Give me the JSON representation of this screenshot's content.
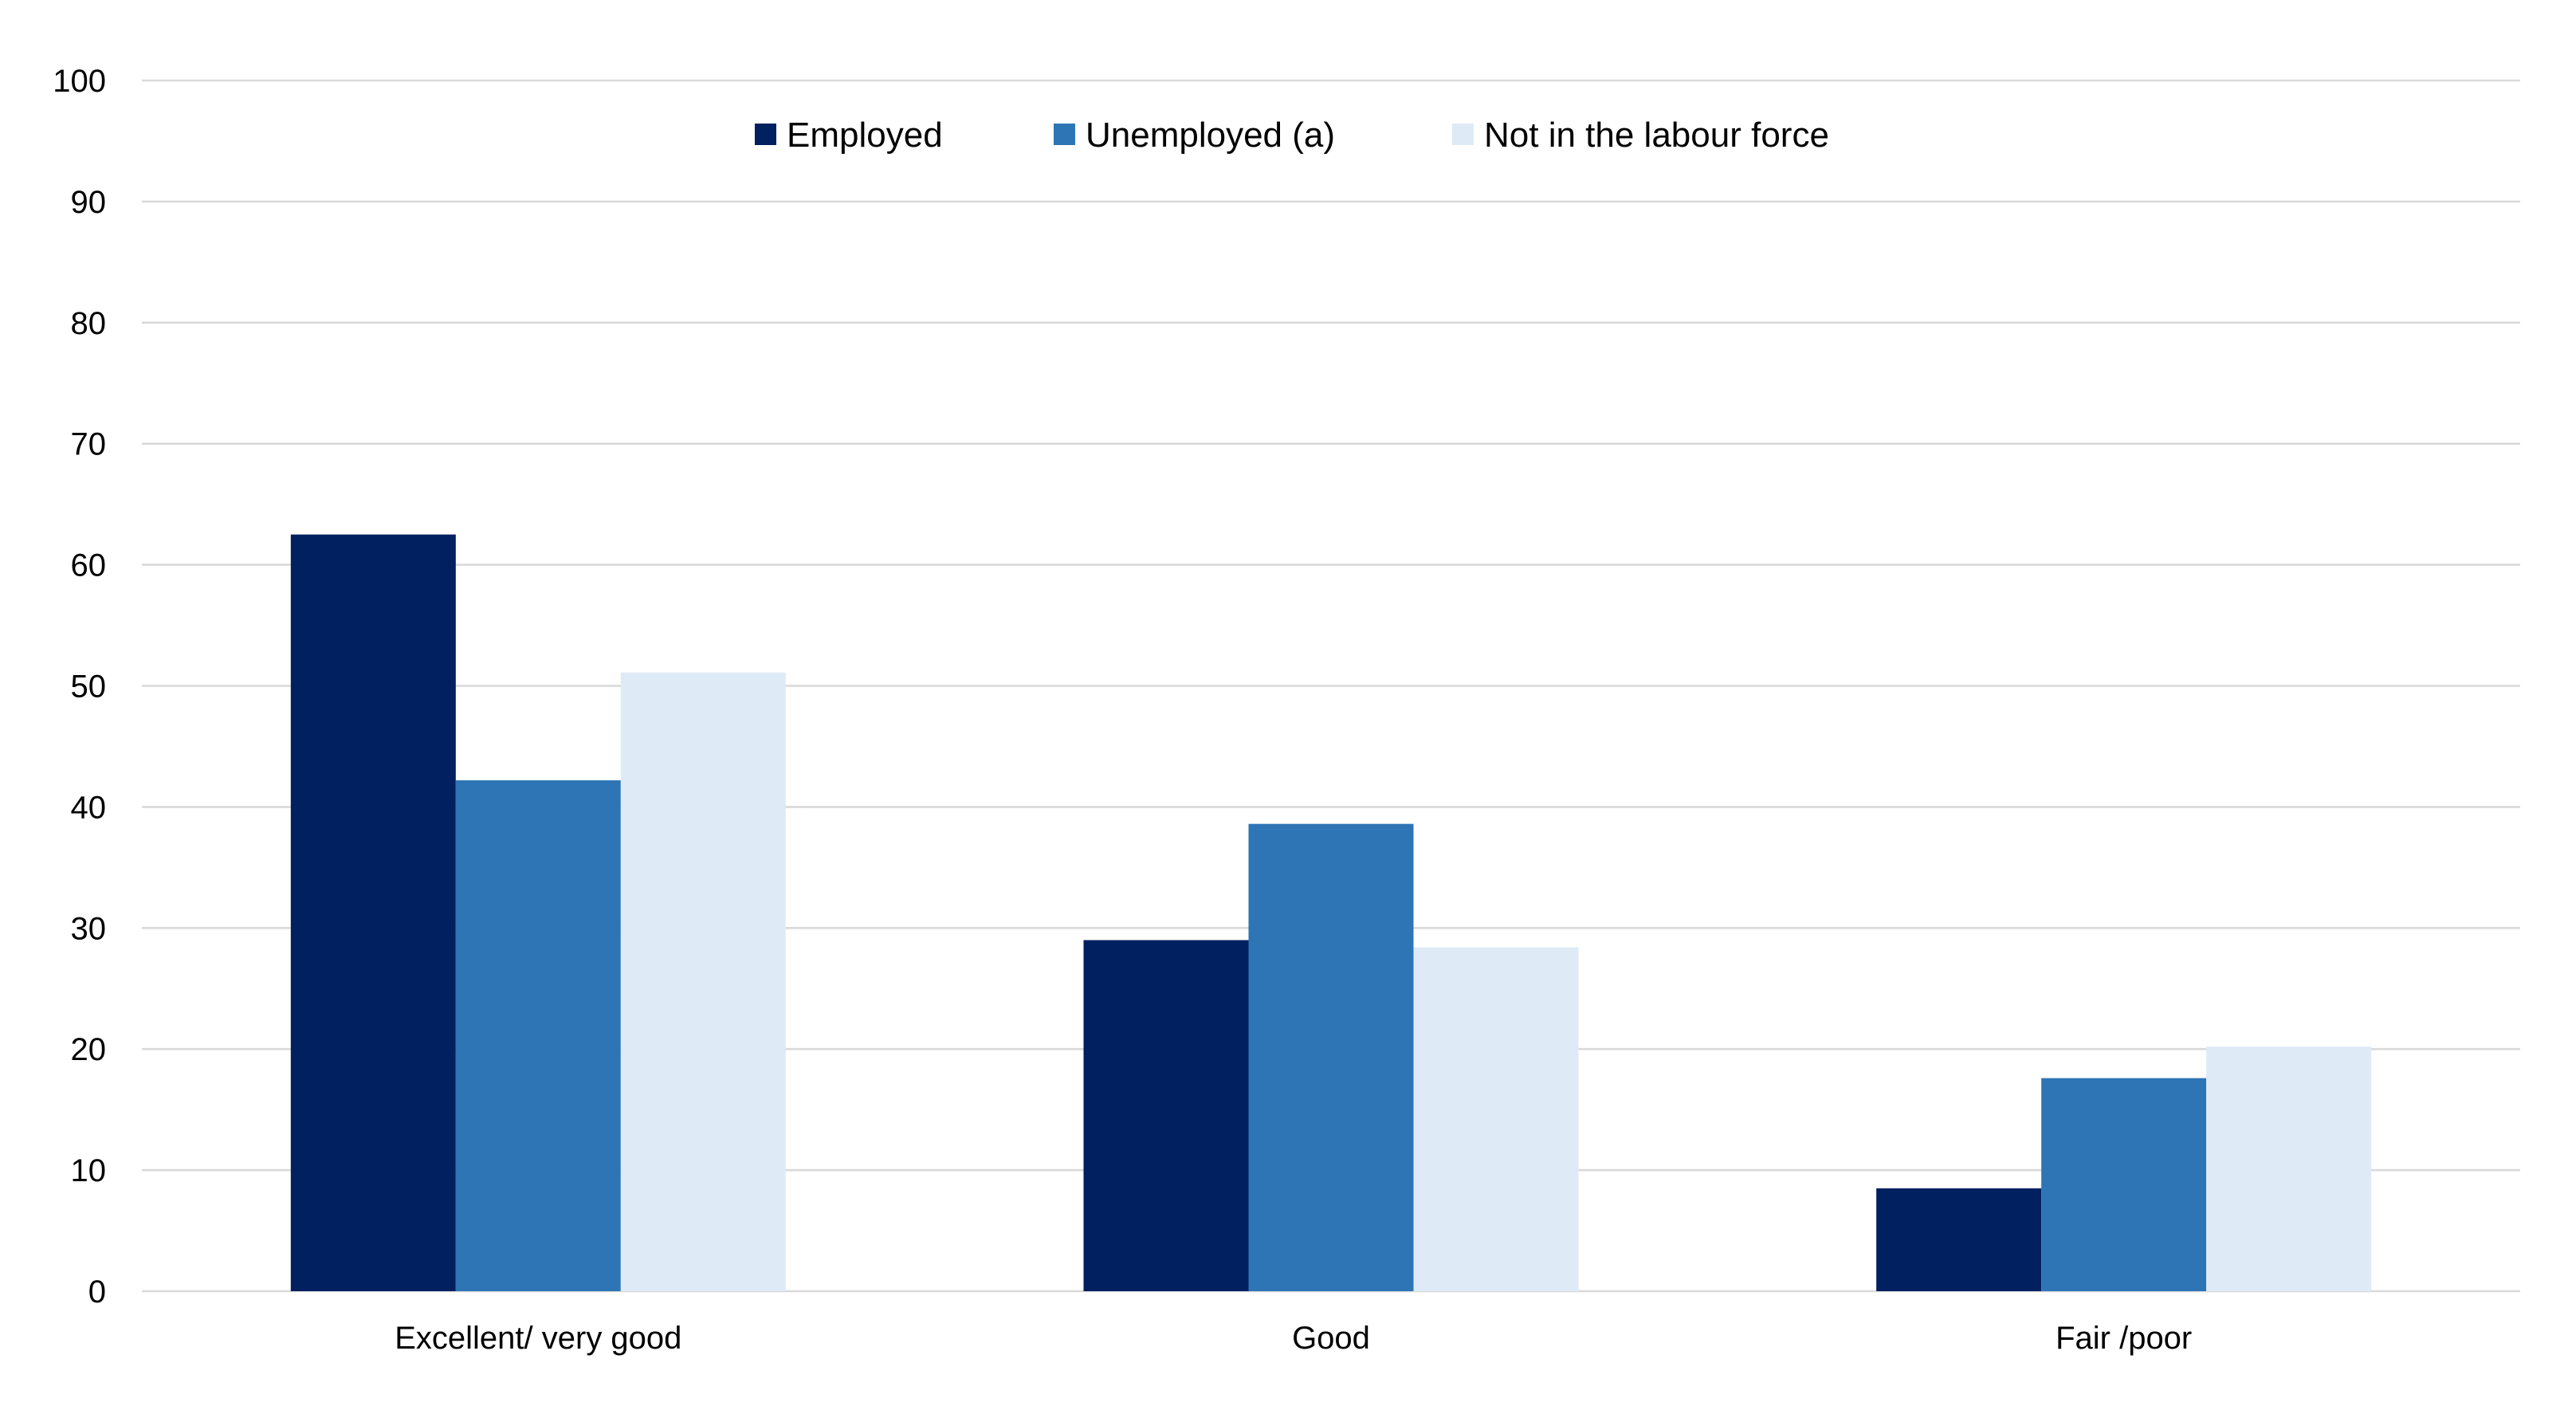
{
  "chart_data": {
    "type": "bar",
    "categories": [
      "Excellent/ very good",
      "Good",
      "Fair /poor"
    ],
    "series": [
      {
        "name": "Employed",
        "color": "#002060",
        "values": [
          62.5,
          29.0,
          8.5
        ]
      },
      {
        "name": "Unemployed (a)",
        "color": "#2E75B6",
        "values": [
          42.2,
          38.6,
          17.6
        ]
      },
      {
        "name": "Not in the labour force",
        "color": "#DEEAF6",
        "values": [
          51.1,
          28.4,
          20.2
        ]
      }
    ],
    "yticks": [
      "0",
      "10",
      "20",
      "30",
      "40",
      "50",
      "60",
      "70",
      "80",
      "90",
      "100"
    ],
    "ylim": [
      0,
      100
    ],
    "grid": true,
    "legend_position": "top-center"
  }
}
